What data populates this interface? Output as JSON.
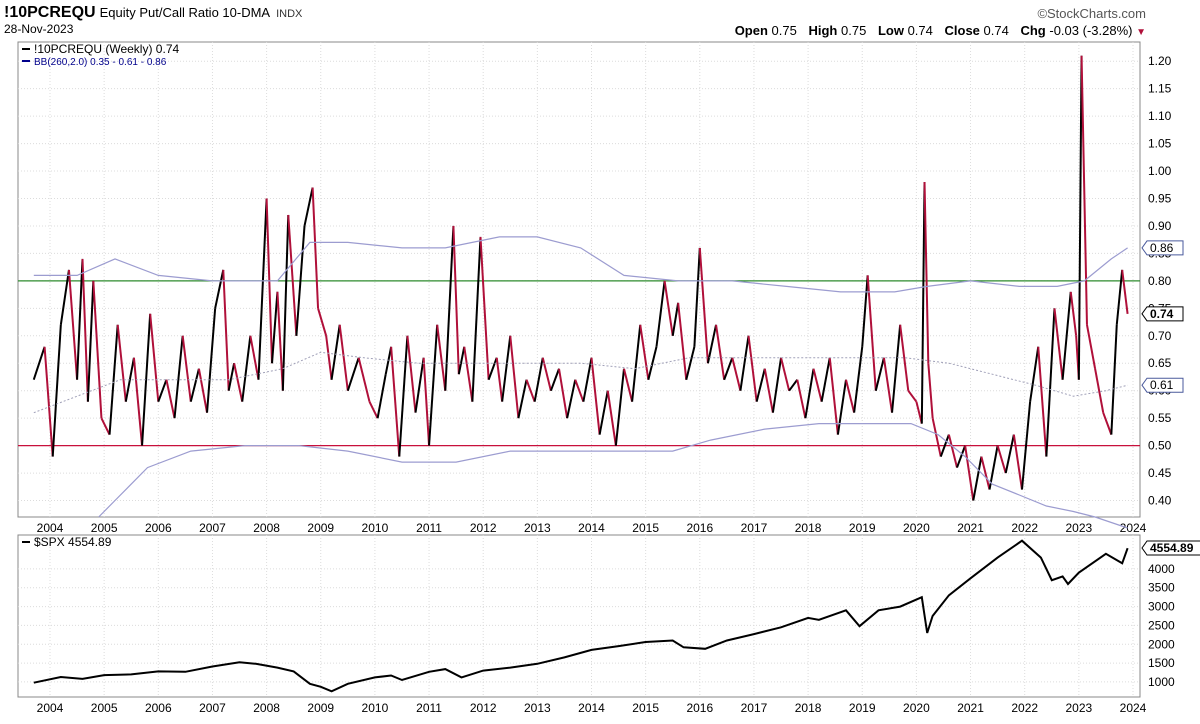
{
  "header": {
    "symbol": "!10PCREQU",
    "description": "Equity Put/Call Ratio 10-DMA",
    "exchange": "INDX",
    "date": "28-Nov-2023",
    "brand": "©StockCharts.com",
    "open_label": "Open",
    "open": "0.75",
    "high_label": "High",
    "high": "0.75",
    "low_label": "Low",
    "low": "0.74",
    "close_label": "Close",
    "close": "0.74",
    "chg_label": "Chg",
    "chg": "-0.03 (-3.28%)",
    "chg_arrow": "▼"
  },
  "chart_data": [
    {
      "type": "line",
      "legend": [
        {
          "text": "!10PCREQU (Weekly) 0.74",
          "color": "#000000"
        },
        {
          "text": "BB(260,2.0) 0.35 - 0.61 - 0.86",
          "color": "#00008b"
        }
      ],
      "ylim": [
        0.37,
        1.235
      ],
      "yticks": [
        0.4,
        0.45,
        0.5,
        0.55,
        0.6,
        0.65,
        0.7,
        0.75,
        0.8,
        0.85,
        0.9,
        0.95,
        1.0,
        1.05,
        1.1,
        1.15,
        1.2
      ],
      "xticks": [
        "2004",
        "2005",
        "2006",
        "2007",
        "2008",
        "2009",
        "2010",
        "2011",
        "2012",
        "2013",
        "2014",
        "2015",
        "2016",
        "2017",
        "2018",
        "2019",
        "2020",
        "2021",
        "2022",
        "2023",
        "2024"
      ],
      "horizontal_lines": [
        {
          "y": 0.8,
          "color": "#2e8b2e"
        },
        {
          "y": 0.5,
          "color": "#c8103c"
        }
      ],
      "value_tags": [
        "0.86",
        "0.74",
        "0.61"
      ],
      "colors": {
        "up": "#000000",
        "down": "#b0103a",
        "band": "#9c9cd0",
        "mid": "#a0a0b8"
      },
      "series": [
        {
          "role": "ratio",
          "x": [
            2003.7,
            2003.9,
            2004.05,
            2004.2,
            2004.35,
            2004.5,
            2004.6,
            2004.7,
            2004.8,
            2004.95,
            2005.1,
            2005.25,
            2005.4,
            2005.55,
            2005.7,
            2005.85,
            2006.0,
            2006.15,
            2006.3,
            2006.45,
            2006.6,
            2006.75,
            2006.9,
            2007.05,
            2007.2,
            2007.3,
            2007.4,
            2007.55,
            2007.7,
            2007.85,
            2008.0,
            2008.1,
            2008.2,
            2008.3,
            2008.4,
            2008.55,
            2008.7,
            2008.85,
            2008.95,
            2009.1,
            2009.2,
            2009.35,
            2009.5,
            2009.7,
            2009.9,
            2010.05,
            2010.2,
            2010.3,
            2010.45,
            2010.6,
            2010.75,
            2010.9,
            2011.0,
            2011.15,
            2011.3,
            2011.45,
            2011.55,
            2011.65,
            2011.8,
            2011.95,
            2012.1,
            2012.25,
            2012.35,
            2012.5,
            2012.65,
            2012.8,
            2012.95,
            2013.1,
            2013.25,
            2013.4,
            2013.55,
            2013.7,
            2013.85,
            2014.0,
            2014.15,
            2014.3,
            2014.45,
            2014.6,
            2014.75,
            2014.9,
            2015.05,
            2015.2,
            2015.35,
            2015.5,
            2015.6,
            2015.75,
            2015.9,
            2016.0,
            2016.15,
            2016.3,
            2016.45,
            2016.6,
            2016.75,
            2016.9,
            2017.05,
            2017.2,
            2017.35,
            2017.5,
            2017.65,
            2017.8,
            2017.95,
            2018.1,
            2018.25,
            2018.4,
            2018.55,
            2018.7,
            2018.85,
            2019.0,
            2019.1,
            2019.25,
            2019.4,
            2019.55,
            2019.7,
            2019.85,
            2020.0,
            2020.1,
            2020.15,
            2020.22,
            2020.3,
            2020.45,
            2020.6,
            2020.75,
            2020.9,
            2021.05,
            2021.2,
            2021.35,
            2021.5,
            2021.65,
            2021.8,
            2021.95,
            2022.1,
            2022.25,
            2022.4,
            2022.55,
            2022.7,
            2022.85,
            2022.95,
            2023.0,
            2023.05,
            2023.15,
            2023.3,
            2023.45,
            2023.6,
            2023.7,
            2023.8,
            2023.9
          ],
          "values": [
            0.62,
            0.68,
            0.48,
            0.72,
            0.82,
            0.62,
            0.84,
            0.58,
            0.8,
            0.55,
            0.52,
            0.72,
            0.58,
            0.66,
            0.5,
            0.74,
            0.58,
            0.62,
            0.55,
            0.7,
            0.58,
            0.64,
            0.56,
            0.75,
            0.82,
            0.6,
            0.65,
            0.58,
            0.7,
            0.62,
            0.95,
            0.65,
            0.78,
            0.6,
            0.92,
            0.7,
            0.9,
            0.97,
            0.75,
            0.7,
            0.62,
            0.72,
            0.6,
            0.66,
            0.58,
            0.55,
            0.63,
            0.68,
            0.48,
            0.7,
            0.56,
            0.66,
            0.5,
            0.72,
            0.6,
            0.9,
            0.63,
            0.68,
            0.58,
            0.88,
            0.62,
            0.66,
            0.58,
            0.7,
            0.55,
            0.62,
            0.58,
            0.66,
            0.6,
            0.64,
            0.55,
            0.62,
            0.58,
            0.66,
            0.52,
            0.6,
            0.5,
            0.64,
            0.58,
            0.72,
            0.62,
            0.68,
            0.8,
            0.7,
            0.76,
            0.62,
            0.68,
            0.86,
            0.65,
            0.72,
            0.62,
            0.66,
            0.6,
            0.7,
            0.58,
            0.64,
            0.56,
            0.66,
            0.6,
            0.62,
            0.55,
            0.64,
            0.58,
            0.66,
            0.52,
            0.62,
            0.56,
            0.68,
            0.81,
            0.6,
            0.66,
            0.56,
            0.72,
            0.6,
            0.58,
            0.54,
            0.98,
            0.65,
            0.55,
            0.48,
            0.52,
            0.46,
            0.5,
            0.4,
            0.48,
            0.42,
            0.5,
            0.45,
            0.52,
            0.42,
            0.58,
            0.68,
            0.48,
            0.75,
            0.62,
            0.78,
            0.7,
            0.62,
            1.21,
            0.72,
            0.64,
            0.56,
            0.52,
            0.72,
            0.82,
            0.74
          ]
        },
        {
          "role": "bb_upper",
          "x": [
            2003.7,
            2004.5,
            2005.2,
            2006.0,
            2007.0,
            2008.2,
            2008.8,
            2009.5,
            2010.5,
            2011.3,
            2012.3,
            2013.0,
            2013.8,
            2014.6,
            2015.6,
            2016.6,
            2017.6,
            2018.6,
            2019.6,
            2020.2,
            2021.0,
            2021.9,
            2022.6,
            2023.1,
            2023.6,
            2023.9
          ],
          "values": [
            0.81,
            0.81,
            0.84,
            0.81,
            0.8,
            0.8,
            0.87,
            0.87,
            0.86,
            0.86,
            0.88,
            0.88,
            0.86,
            0.81,
            0.8,
            0.8,
            0.79,
            0.78,
            0.78,
            0.79,
            0.8,
            0.79,
            0.79,
            0.8,
            0.84,
            0.86
          ]
        },
        {
          "role": "bb_lower",
          "x": [
            2004.9,
            2005.2,
            2005.8,
            2006.6,
            2007.6,
            2008.6,
            2009.5,
            2010.5,
            2011.5,
            2012.5,
            2013.5,
            2014.5,
            2015.5,
            2016.2,
            2017.2,
            2018.2,
            2019.2,
            2019.9,
            2020.4,
            2020.9,
            2021.4,
            2021.9,
            2022.4,
            2022.9,
            2023.3,
            2023.9
          ],
          "values": [
            0.37,
            0.4,
            0.46,
            0.49,
            0.5,
            0.5,
            0.49,
            0.47,
            0.47,
            0.49,
            0.49,
            0.49,
            0.49,
            0.51,
            0.53,
            0.54,
            0.54,
            0.54,
            0.52,
            0.48,
            0.43,
            0.41,
            0.39,
            0.38,
            0.37,
            0.35
          ]
        },
        {
          "role": "bb_mid",
          "x": [
            2003.7,
            2004.5,
            2005.3,
            2006.3,
            2007.3,
            2008.3,
            2009.0,
            2009.8,
            2010.8,
            2011.8,
            2012.8,
            2013.8,
            2014.8,
            2015.8,
            2016.8,
            2017.8,
            2018.8,
            2019.8,
            2020.6,
            2021.4,
            2022.2,
            2022.9,
            2023.5,
            2023.9
          ],
          "values": [
            0.56,
            0.59,
            0.62,
            0.62,
            0.62,
            0.64,
            0.67,
            0.66,
            0.65,
            0.65,
            0.65,
            0.65,
            0.64,
            0.66,
            0.66,
            0.66,
            0.66,
            0.66,
            0.65,
            0.63,
            0.61,
            0.59,
            0.6,
            0.61
          ]
        }
      ]
    },
    {
      "type": "line",
      "legend": [
        {
          "text": "$SPX 4554.89",
          "color": "#000000"
        }
      ],
      "ylim": [
        600,
        4900
      ],
      "yticks": [
        1000,
        1500,
        2000,
        2500,
        3000,
        3500,
        4000
      ],
      "xticks": [
        "2004",
        "2005",
        "2006",
        "2007",
        "2008",
        "2009",
        "2010",
        "2011",
        "2012",
        "2013",
        "2014",
        "2015",
        "2016",
        "2017",
        "2018",
        "2019",
        "2020",
        "2021",
        "2022",
        "2023",
        "2024"
      ],
      "value_tags": [
        "4554.89"
      ],
      "series": [
        {
          "name": "$SPX",
          "x": [
            2003.7,
            2004.2,
            2004.6,
            2005.0,
            2005.5,
            2006.0,
            2006.5,
            2007.0,
            2007.5,
            2007.8,
            2008.2,
            2008.5,
            2008.8,
            2009.0,
            2009.2,
            2009.5,
            2010.0,
            2010.3,
            2010.5,
            2011.0,
            2011.3,
            2011.6,
            2012.0,
            2012.5,
            2013.0,
            2013.5,
            2014.0,
            2014.5,
            2015.0,
            2015.5,
            2015.7,
            2016.1,
            2016.5,
            2017.0,
            2017.5,
            2018.0,
            2018.2,
            2018.7,
            2018.95,
            2019.3,
            2019.7,
            2020.1,
            2020.2,
            2020.3,
            2020.6,
            2021.0,
            2021.5,
            2021.95,
            2022.3,
            2022.5,
            2022.7,
            2022.8,
            2023.0,
            2023.5,
            2023.8,
            2023.9
          ],
          "values": [
            980,
            1130,
            1080,
            1180,
            1200,
            1280,
            1270,
            1410,
            1520,
            1480,
            1380,
            1280,
            950,
            870,
            750,
            950,
            1120,
            1170,
            1050,
            1270,
            1340,
            1120,
            1300,
            1380,
            1480,
            1650,
            1850,
            1950,
            2060,
            2100,
            1920,
            1880,
            2100,
            2270,
            2450,
            2700,
            2650,
            2900,
            2480,
            2900,
            3000,
            3250,
            2300,
            2750,
            3300,
            3750,
            4300,
            4750,
            4300,
            3700,
            3800,
            3600,
            3900,
            4400,
            4150,
            4550
          ]
        }
      ]
    }
  ]
}
